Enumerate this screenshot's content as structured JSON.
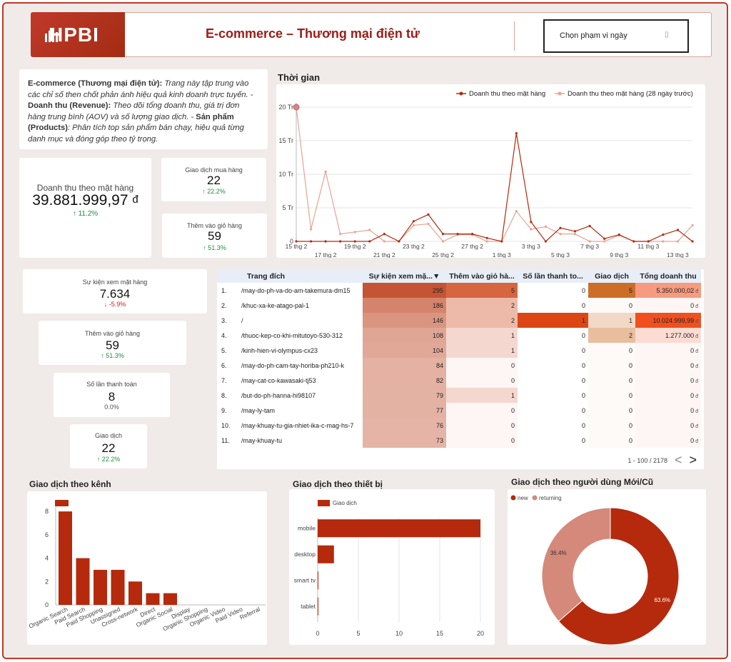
{
  "header": {
    "logo_text": "HPBI",
    "title": "E-commerce – Thương mại điện tử",
    "date_range_label": "Chọn phạm vi ngày",
    "date_icon": "calendar-icon"
  },
  "description": {
    "p1_bold": "E-commerce (Thương mại điện tử):",
    "p1_text": " Trang này tập trung vào các chỉ số then chốt phản ánh hiệu quả kinh doanh trực tuyến. -",
    "p2_bold": "Doanh thu (Revenue):",
    "p2_text": " Theo dõi tổng doanh thu, giá trị đơn hàng trung bình (AOV) và số lượng giao dịch. -",
    "p3_bold": "Sản phẩm (Products)",
    "p3_text": ": Phân tích top sản phẩm bán chạy, hiệu quả từng danh mục và đóng góp theo tỷ trọng."
  },
  "kpis": {
    "revenue": {
      "label": "Doanh thu theo mặt hàng",
      "value": "39.881.999,97",
      "currency": "đ",
      "delta": "↑ 11.2%"
    },
    "purchases": {
      "label": "Giao dịch mua hàng",
      "value": "22",
      "delta": "↑ 22.2%"
    },
    "add_to_cart": {
      "label": "Thêm vào giỏ hàng",
      "value": "59",
      "delta": "↑ 51.3%"
    },
    "item_views": {
      "label": "Sự kiện xem mặt hàng",
      "value": "7.634",
      "delta": "↓ -5.9%"
    },
    "add_to_cart_2": {
      "label": "Thêm vào giỏ hàng",
      "value": "59",
      "delta": "↑ 51.3%"
    },
    "checkouts": {
      "label": "Số lần thanh toán",
      "value": "8",
      "delta": "0.0%"
    },
    "transactions": {
      "label": "Giao dịch",
      "value": "22",
      "delta": "↑ 22.2%"
    }
  },
  "time_chart": {
    "section_title": "Thời gian",
    "legend": [
      "Doanh thu theo mặt hàng",
      "Doanh thu theo mặt hàng (28 ngày trước)"
    ],
    "colors": [
      "#b5290c",
      "#e8a394"
    ],
    "y_ticks": [
      "0",
      "5 Tr",
      "10 Tr",
      "15 Tr",
      "20 Tr"
    ],
    "y_max": 20,
    "x_labels_top": [
      "15 thg 2",
      "19 thg 2",
      "23 thg 2",
      "27 thg 2",
      "3 thg 3",
      "7 thg 3",
      "11 thg 3"
    ],
    "x_labels_bottom": [
      "17 thg 2",
      "21 thg 2",
      "25 thg 2",
      "1 thg 3",
      "5 thg 3",
      "9 thg 3",
      "13 thg 3"
    ]
  },
  "table": {
    "columns": [
      "Trang đích",
      "Sự kiện xem mặ...▼",
      "Thêm vào giỏ hà...",
      "Số lần thanh to...",
      "Giao dịch",
      "Tổng doanh thu"
    ],
    "rows": [
      {
        "idx": "1.",
        "page": "/may-do-ph-va-do-am-takemura-dm15",
        "views": "295",
        "cart": "5",
        "checkout": "0",
        "tx": "5",
        "rev": "5.350.000,02"
      },
      {
        "idx": "2.",
        "page": "/khuc-xa-ke-atago-pal-1",
        "views": "186",
        "cart": "2",
        "checkout": "0",
        "tx": "0",
        "rev": "0"
      },
      {
        "idx": "3.",
        "page": "/",
        "views": "146",
        "cart": "2",
        "checkout": "1",
        "tx": "1",
        "rev": "10.024.999,99"
      },
      {
        "idx": "4.",
        "page": "/thuoc-kep-co-khi-mitutoyo-530-312",
        "views": "108",
        "cart": "1",
        "checkout": "0",
        "tx": "2",
        "rev": "1.277.000"
      },
      {
        "idx": "5.",
        "page": "/kinh-hien-vi-olympus-cx23",
        "views": "104",
        "cart": "1",
        "checkout": "0",
        "tx": "0",
        "rev": "0"
      },
      {
        "idx": "6.",
        "page": "/may-do-ph-cam-tay-horiba-ph210-k",
        "views": "84",
        "cart": "0",
        "checkout": "0",
        "tx": "0",
        "rev": "0"
      },
      {
        "idx": "7.",
        "page": "/may-cat-co-kawasaki-tj53",
        "views": "82",
        "cart": "0",
        "checkout": "0",
        "tx": "0",
        "rev": "0"
      },
      {
        "idx": "8.",
        "page": "/but-do-ph-hanna-hi98107",
        "views": "79",
        "cart": "1",
        "checkout": "0",
        "tx": "0",
        "rev": "0"
      },
      {
        "idx": "9.",
        "page": "/may-ly-tam",
        "views": "77",
        "cart": "0",
        "checkout": "0",
        "tx": "0",
        "rev": "0"
      },
      {
        "idx": "10.",
        "page": "/may-khuay-tu-gia-nhiet-ika-c-mag-hs-7",
        "views": "76",
        "cart": "0",
        "checkout": "0",
        "tx": "0",
        "rev": "0"
      },
      {
        "idx": "11.",
        "page": "/may-khuay-tu",
        "views": "73",
        "cart": "0",
        "checkout": "0",
        "tx": "0",
        "rev": "0"
      }
    ],
    "currency": "đ",
    "pagination": "1 - 100 / 2178",
    "prev_icon": "chevron-left-icon",
    "next_icon": "chevron-right-icon"
  },
  "channel_chart": {
    "section_title": "Giao dịch theo kênh"
  },
  "device_chart": {
    "section_title": "Giao dịch theo thiết bị",
    "legend": "Giao dịch"
  },
  "user_chart": {
    "section_title": "Giao dịch theo người dùng Mới/Cũ",
    "legend": [
      "new",
      "returning"
    ]
  },
  "chart_data": [
    {
      "type": "line",
      "title": "Thời gian",
      "ylabel": "",
      "xlabel": "",
      "ylim": [
        0,
        20
      ],
      "x": [
        "15 thg 2",
        "16 thg 2",
        "17 thg 2",
        "18 thg 2",
        "19 thg 2",
        "20 thg 2",
        "21 thg 2",
        "22 thg 2",
        "23 thg 2",
        "24 thg 2",
        "25 thg 2",
        "26 thg 2",
        "27 thg 2",
        "28 thg 2",
        "1 thg 3",
        "2 thg 3",
        "3 thg 3",
        "4 thg 3",
        "5 thg 3",
        "6 thg 3",
        "7 thg 3",
        "8 thg 3",
        "9 thg 3",
        "10 thg 3",
        "11 thg 3",
        "12 thg 3",
        "13 thg 3",
        "14 thg 3"
      ],
      "series": [
        {
          "name": "Doanh thu theo mặt hàng",
          "values": [
            0,
            0,
            0,
            0,
            0,
            0,
            1.1,
            0,
            3,
            4,
            1.1,
            1.1,
            1.1,
            0.5,
            0,
            16.1,
            2.9,
            0,
            2,
            1.5,
            2.3,
            0.4,
            1,
            0,
            0,
            1,
            1.7,
            0
          ]
        },
        {
          "name": "Doanh thu theo mặt hàng (28 ngày trước)",
          "values": [
            20,
            1.8,
            10.4,
            1.1,
            1.4,
            1.7,
            0,
            0,
            2.4,
            2.6,
            0,
            1,
            1,
            0,
            0,
            4.5,
            1.8,
            2.2,
            1.1,
            1.1,
            0,
            0,
            0.9,
            0,
            0,
            0,
            0,
            2.4
          ]
        }
      ]
    },
    {
      "type": "bar",
      "title": "Giao dịch theo kênh",
      "categories": [
        "Organic Search",
        "Paid Search",
        "Paid Shopping",
        "Unassigned",
        "Cross-network",
        "Direct",
        "Organic Social",
        "Display",
        "Organic Shopping",
        "Organic Video",
        "Paid Video",
        "Referral"
      ],
      "values": [
        8,
        4,
        3,
        3,
        2,
        1,
        1,
        0,
        0,
        0,
        0,
        0
      ],
      "y_ticks": [
        "0",
        "2",
        "4",
        "6",
        "8"
      ],
      "ylim": [
        0,
        8.5
      ],
      "color": "#b5290c"
    },
    {
      "type": "bar",
      "orientation": "horizontal",
      "title": "Giao dịch theo thiết bị",
      "categories": [
        "mobile",
        "desktop",
        "smart tv",
        "tablet"
      ],
      "values": [
        20,
        2,
        0,
        0
      ],
      "x_ticks": [
        "0",
        "5",
        "10",
        "15",
        "20"
      ],
      "xlim": [
        0,
        20
      ],
      "color": "#b5290c"
    },
    {
      "type": "pie",
      "title": "Giao dịch theo người dùng Mới/Cũ",
      "categories": [
        "new",
        "returning"
      ],
      "values": [
        63.6,
        36.4
      ],
      "labels": [
        "63.6%",
        "36.4%"
      ],
      "colors": [
        "#b5290c",
        "#d4897a"
      ]
    }
  ]
}
